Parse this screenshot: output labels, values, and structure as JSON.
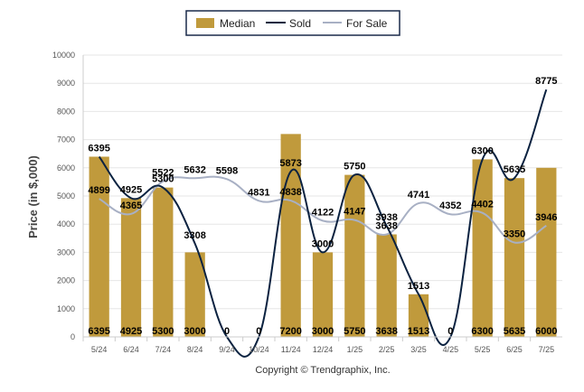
{
  "chart_data": {
    "type": "bar",
    "categories": [
      "5/24",
      "6/24",
      "7/24",
      "8/24",
      "9/24",
      "10/24",
      "11/24",
      "12/24",
      "1/25",
      "2/25",
      "3/25",
      "4/25",
      "5/25",
      "6/25",
      "7/25"
    ],
    "series": [
      {
        "name": "Median",
        "kind": "bar",
        "color": "#c09a3c",
        "values": [
          6395,
          4925,
          5300,
          3000,
          0,
          0,
          7200,
          3000,
          5750,
          3638,
          1513,
          0,
          6300,
          5635,
          6000
        ]
      },
      {
        "name": "Sold",
        "kind": "line",
        "color": "#0b2240",
        "values": [
          6395,
          4925,
          5300,
          3308,
          0,
          0,
          5873,
          3000,
          5750,
          3938,
          1513,
          0,
          6300,
          5635,
          8775
        ]
      },
      {
        "name": "For Sale",
        "kind": "line",
        "color": "#a8b0c4",
        "values": [
          4899,
          4365,
          5522,
          5632,
          5598,
          4831,
          4838,
          4122,
          4147,
          3638,
          4741,
          4352,
          4402,
          3350,
          3946
        ]
      }
    ],
    "ylabel": "Price (in $,000)",
    "ylim": [
      0,
      10000
    ],
    "yticks": [
      0,
      1000,
      2000,
      3000,
      4000,
      5000,
      6000,
      7000,
      8000,
      9000,
      10000
    ],
    "legend_position": "top-center",
    "grid": true
  },
  "footer": "Copyright © Trendgraphix, Inc."
}
